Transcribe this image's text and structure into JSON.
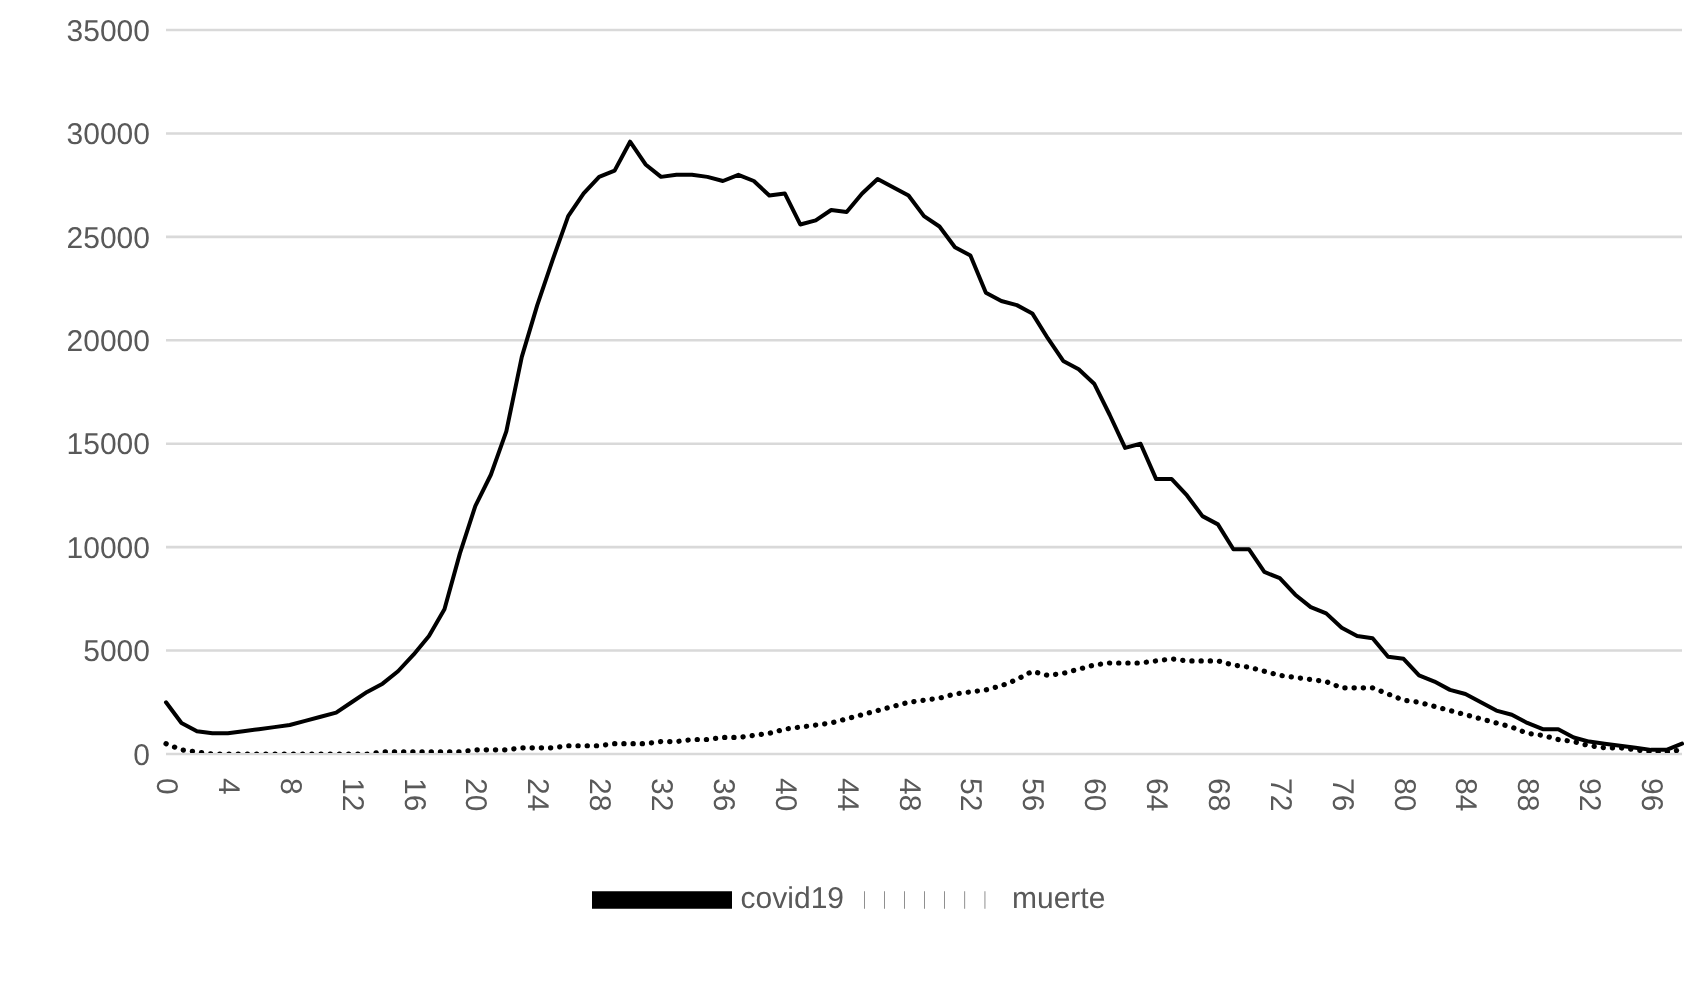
{
  "chart_data": {
    "type": "line",
    "categories": [
      "0",
      null,
      null,
      null,
      "4",
      null,
      null,
      null,
      "8",
      null,
      null,
      null,
      "12",
      null,
      null,
      null,
      "16",
      null,
      null,
      null,
      "20",
      null,
      null,
      null,
      "24",
      null,
      null,
      null,
      "28",
      null,
      null,
      null,
      "32",
      null,
      null,
      null,
      "36",
      null,
      null,
      null,
      "40",
      null,
      null,
      null,
      "44",
      null,
      null,
      null,
      "48",
      null,
      null,
      null,
      "52",
      null,
      null,
      null,
      "56",
      null,
      null,
      null,
      "60",
      null,
      null,
      null,
      "64",
      null,
      null,
      null,
      "68",
      null,
      null,
      null,
      "72",
      null,
      null,
      null,
      "76",
      null,
      null,
      null,
      "80",
      null,
      null,
      null,
      "84",
      null,
      null,
      null,
      "88",
      null,
      null,
      null,
      "92",
      null,
      null,
      null,
      "96",
      null,
      null
    ],
    "series": [
      {
        "name": "covid19",
        "color": "#000000",
        "line_style": "solid",
        "values": [
          2500,
          1500,
          1100,
          1000,
          1000,
          1100,
          1200,
          1300,
          1400,
          1600,
          1800,
          2000,
          2500,
          3000,
          3400,
          4000,
          4800,
          5700,
          7000,
          9700,
          12000,
          13500,
          15600,
          19200,
          21700,
          23900,
          26000,
          27100,
          27900,
          28200,
          29600,
          28500,
          27900,
          28000,
          28000,
          27900,
          27700,
          28000,
          27700,
          27000,
          27100,
          25600,
          25800,
          26300,
          26200,
          27100,
          27800,
          27400,
          27000,
          26000,
          25500,
          24500,
          24100,
          22300,
          21900,
          21700,
          21300,
          20100,
          19000,
          18600,
          17900,
          16400,
          14800,
          15000,
          13300,
          13300,
          12500,
          11500,
          11100,
          9900,
          9900,
          8800,
          8500,
          7700,
          7100,
          6800,
          6100,
          5700,
          5600,
          4700,
          4600,
          3800,
          3500,
          3100,
          2900,
          2500,
          2100,
          1900,
          1500,
          1200,
          1200,
          800,
          600,
          500,
          400,
          300,
          200,
          200,
          500
        ]
      },
      {
        "name": "muerte",
        "color": "#000000",
        "line_style": "dotted",
        "values": [
          500,
          200,
          100,
          0,
          0,
          0,
          0,
          0,
          0,
          0,
          0,
          0,
          0,
          0,
          100,
          100,
          100,
          100,
          100,
          100,
          200,
          200,
          200,
          300,
          300,
          300,
          400,
          400,
          400,
          500,
          500,
          500,
          600,
          600,
          700,
          700,
          800,
          800,
          900,
          1000,
          1200,
          1300,
          1400,
          1500,
          1700,
          1900,
          2100,
          2300,
          2500,
          2600,
          2700,
          2900,
          3000,
          3100,
          3300,
          3600,
          4000,
          3800,
          3900,
          4100,
          4300,
          4400,
          4400,
          4400,
          4500,
          4600,
          4500,
          4500,
          4500,
          4300,
          4200,
          4000,
          3800,
          3700,
          3600,
          3500,
          3200,
          3200,
          3200,
          2900,
          2600,
          2500,
          2300,
          2100,
          1900,
          1700,
          1500,
          1300,
          1000,
          900,
          700,
          600,
          400,
          300,
          300,
          200,
          100,
          100,
          200
        ]
      }
    ],
    "ylim": [
      0,
      35000
    ],
    "yticks": [
      0,
      5000,
      10000,
      15000,
      20000,
      25000,
      30000,
      35000
    ],
    "grid": "y",
    "legend": "bottom",
    "marker": "none"
  }
}
